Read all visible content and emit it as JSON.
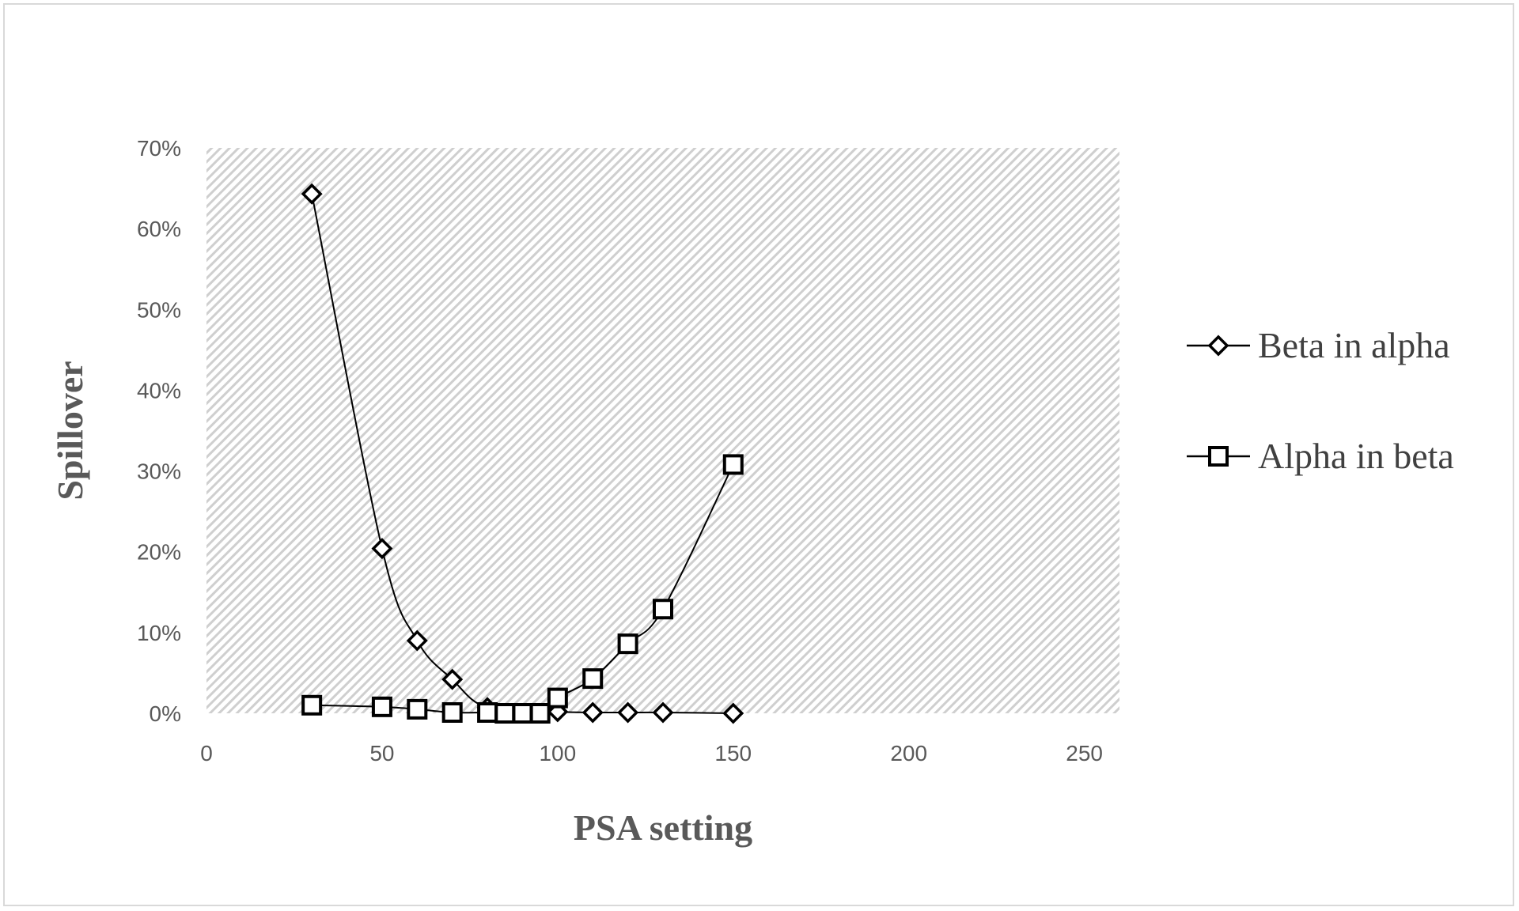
{
  "chart_data": {
    "type": "line",
    "title": "",
    "xlabel": "PSA setting",
    "ylabel": "Spillover",
    "xlim": [
      0,
      260
    ],
    "ylim": [
      0,
      0.7
    ],
    "x_ticks": [
      0,
      50,
      100,
      150,
      200,
      250
    ],
    "x_tick_labels": [
      "0",
      "50",
      "100",
      "150",
      "200",
      "250"
    ],
    "y_ticks": [
      0,
      0.1,
      0.2,
      0.3,
      0.4,
      0.5,
      0.6,
      0.7
    ],
    "y_tick_labels": [
      "0%",
      "10%",
      "20%",
      "30%",
      "40%",
      "50%",
      "60%",
      "70%"
    ],
    "plot_area_fill": "hatched-gray",
    "grid": false,
    "legend_position": "right",
    "series": [
      {
        "name": "Beta in alpha",
        "marker": "diamond",
        "color": "#000000",
        "points": [
          [
            30,
            0.643
          ],
          [
            50,
            0.204
          ],
          [
            60,
            0.09
          ],
          [
            70,
            0.042
          ],
          [
            80,
            0.007
          ],
          [
            100,
            0.002
          ],
          [
            110,
            0.001
          ],
          [
            120,
            0.001
          ],
          [
            130,
            0.001
          ],
          [
            150,
            0.0
          ]
        ]
      },
      {
        "name": "Alpha in beta",
        "marker": "square",
        "color": "#000000",
        "points": [
          [
            30,
            0.01
          ],
          [
            50,
            0.008
          ],
          [
            60,
            0.005
          ],
          [
            70,
            0.001
          ],
          [
            80,
            0.001
          ],
          [
            85,
            0.0
          ],
          [
            90,
            0.0
          ],
          [
            95,
            0.0
          ],
          [
            100,
            0.019
          ],
          [
            110,
            0.043
          ],
          [
            120,
            0.086
          ],
          [
            130,
            0.129
          ],
          [
            150,
            0.308
          ]
        ]
      }
    ]
  }
}
